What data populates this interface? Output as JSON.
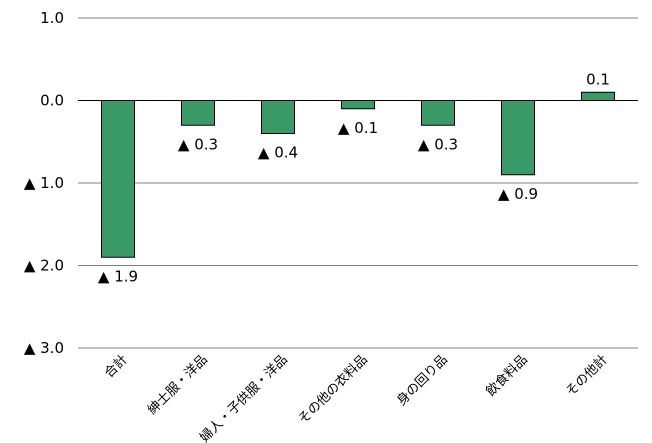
{
  "chart_data": {
    "type": "bar",
    "categories": [
      "合計",
      "紳士服・洋品",
      "婦人・子供服・洋品",
      "その他の衣料品",
      "身の回り品",
      "飲食料品",
      "その他計"
    ],
    "values": [
      -1.9,
      -0.3,
      -0.4,
      -0.1,
      -0.3,
      -0.9,
      0.1
    ],
    "value_labels": [
      "▲ 1.9",
      "▲ 0.3",
      "▲ 0.4",
      "▲ 0.1",
      "▲ 0.3",
      "▲ 0.9",
      "0.1"
    ],
    "y_tick_labels": [
      "1.0",
      "0.0",
      "▲ 1.0",
      "▲ 2.0",
      "▲ 3.0"
    ],
    "y_tick_values": [
      1.0,
      0.0,
      -1.0,
      -2.0,
      -3.0
    ],
    "ylim": [
      -3.0,
      1.0
    ],
    "grid": true,
    "bar_color": "#3a9a67",
    "bar_edge_color": "#000000",
    "grid_color": "#808080"
  }
}
